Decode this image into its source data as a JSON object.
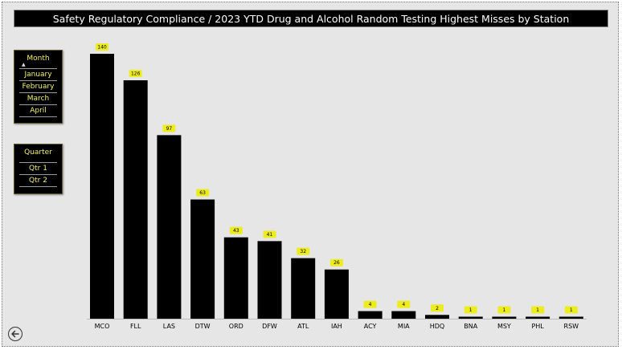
{
  "title": "Safety Regulatory Compliance / 2023 YTD Drug and Alcohol Random Testing Highest Misses by Station",
  "month_slicer": {
    "header": "Month",
    "items": [
      "January",
      "February",
      "March",
      "April"
    ]
  },
  "quarter_slicer": {
    "header": "Quarter",
    "items": [
      "Qtr 1",
      "Qtr 2"
    ]
  },
  "colors": {
    "bar": "#000000",
    "label_bg": "#ecec1e",
    "slicer_text": "#f4f06e"
  },
  "icons": {
    "back": "back-arrow-icon"
  },
  "chart_data": {
    "type": "bar",
    "title": "",
    "xlabel": "",
    "ylabel": "",
    "categories": [
      "MCO",
      "FLL",
      "LAS",
      "DTW",
      "ORD",
      "DFW",
      "ATL",
      "IAH",
      "ACY",
      "MIA",
      "HDQ",
      "BNA",
      "MSY",
      "PHL",
      "RSW"
    ],
    "values": [
      140,
      126,
      97,
      63,
      43,
      41,
      32,
      26,
      4,
      4,
      2,
      1,
      1,
      1,
      1
    ],
    "ylim": [
      0,
      140
    ],
    "grid": false,
    "legend": "none"
  }
}
